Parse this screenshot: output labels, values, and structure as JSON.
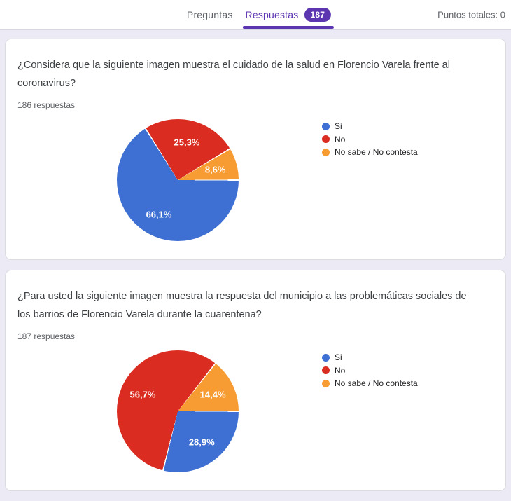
{
  "header": {
    "tabs": [
      {
        "label": "Preguntas",
        "active": false
      },
      {
        "label": "Respuestas",
        "active": true,
        "badge": "187"
      }
    ],
    "points_total_label": "Puntos totales: 0"
  },
  "colors": {
    "accent_purple": "#5e35b1",
    "badge_purple": "#5c35b0",
    "pie_blue": "#3e6fd3",
    "pie_red": "#da2c20",
    "pie_orange": "#f79c33",
    "page_background": "#ecebf5"
  },
  "chart_data": [
    {
      "type": "pie",
      "question": "¿Considera que la siguiente imagen muestra el cuidado de la salud en Florencio Varela frente al coronavirus?",
      "responses_label": "186 respuestas",
      "start": "3-oclock",
      "direction": "clockwise",
      "legend_position": "right",
      "slices": [
        {
          "label": "Si",
          "pct": 66.1,
          "display": "66,1%",
          "color": "#3e6fd3"
        },
        {
          "label": "No",
          "pct": 25.3,
          "display": "25,3%",
          "color": "#da2c20"
        },
        {
          "label": "No sabe / No contesta",
          "pct": 8.6,
          "display": "8,6%",
          "color": "#f79c33"
        }
      ]
    },
    {
      "type": "pie",
      "question": "¿Para usted la siguiente imagen muestra la respuesta del municipio a las problemáticas sociales de los barrios de Florencio Varela durante la cuarentena?",
      "responses_label": "187 respuestas",
      "start": "3-oclock",
      "direction": "clockwise",
      "legend_position": "right",
      "slices": [
        {
          "label": "Si",
          "pct": 28.9,
          "display": "28,9%",
          "color": "#3e6fd3"
        },
        {
          "label": "No",
          "pct": 56.7,
          "display": "56,7%",
          "color": "#da2c20"
        },
        {
          "label": "No sabe / No contesta",
          "pct": 14.4,
          "display": "14,4%",
          "color": "#f79c33"
        }
      ]
    }
  ]
}
